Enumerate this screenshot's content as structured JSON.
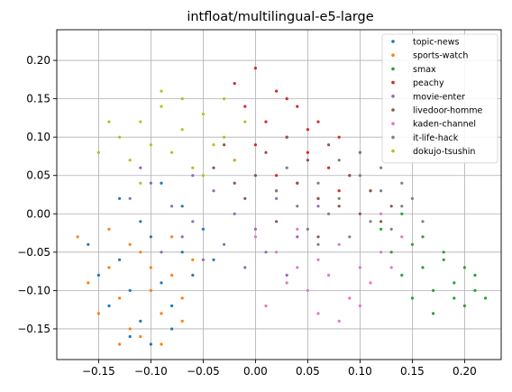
{
  "chart_data": {
    "type": "scatter",
    "title": "intfloat/multilingual-e5-large",
    "xlabel": "",
    "ylabel": "",
    "xlim": [
      -0.19,
      0.235
    ],
    "ylim": [
      -0.19,
      0.24
    ],
    "xticks": [
      -0.15,
      -0.1,
      -0.05,
      0.0,
      0.05,
      0.1,
      0.15,
      0.2
    ],
    "xtick_labels": [
      "−0.15",
      "−0.10",
      "−0.05",
      "0.00",
      "0.05",
      "0.10",
      "0.15",
      "0.20"
    ],
    "yticks": [
      -0.15,
      -0.1,
      -0.05,
      0.0,
      0.05,
      0.1,
      0.15,
      0.2
    ],
    "ytick_labels": [
      "−0.15",
      "−0.10",
      "−0.05",
      "0.00",
      "0.05",
      "0.10",
      "0.15",
      "0.20"
    ],
    "grid": true,
    "legend_position": "top-right",
    "series": [
      {
        "name": "topic-news",
        "color": "#1f77b4",
        "x": [
          -0.16,
          -0.15,
          -0.14,
          -0.13,
          -0.12,
          -0.11,
          -0.1,
          -0.09,
          -0.08,
          -0.07,
          -0.06,
          -0.05,
          -0.04,
          -0.13,
          -0.11,
          -0.09,
          -0.07,
          -0.12,
          -0.1,
          -0.08
        ],
        "y": [
          -0.04,
          -0.08,
          -0.12,
          -0.06,
          -0.1,
          -0.14,
          -0.03,
          -0.09,
          -0.12,
          -0.05,
          -0.08,
          -0.02,
          -0.06,
          0.02,
          -0.01,
          0.04,
          0.01,
          -0.16,
          -0.17,
          -0.15
        ]
      },
      {
        "name": "sports-watch",
        "color": "#ff7f0e",
        "x": [
          -0.17,
          -0.16,
          -0.15,
          -0.14,
          -0.13,
          -0.12,
          -0.11,
          -0.1,
          -0.09,
          -0.08,
          -0.07,
          -0.06,
          -0.14,
          -0.12,
          -0.1,
          -0.08,
          -0.13,
          -0.11,
          -0.09,
          -0.07
        ],
        "y": [
          -0.03,
          -0.09,
          -0.13,
          -0.07,
          -0.11,
          -0.15,
          -0.05,
          -0.1,
          -0.13,
          -0.08,
          -0.11,
          -0.06,
          -0.02,
          -0.04,
          -0.07,
          -0.03,
          -0.17,
          -0.16,
          -0.17,
          -0.14
        ]
      },
      {
        "name": "smax",
        "color": "#2ca02c",
        "x": [
          0.12,
          0.13,
          0.14,
          0.15,
          0.16,
          0.17,
          0.18,
          0.19,
          0.2,
          0.21,
          0.15,
          0.17,
          0.19,
          0.21,
          0.14,
          0.16,
          0.18,
          0.2,
          0.22,
          0.11
        ],
        "y": [
          -0.02,
          -0.05,
          -0.08,
          -0.04,
          -0.07,
          -0.1,
          -0.06,
          -0.09,
          -0.12,
          -0.08,
          -0.11,
          -0.13,
          -0.11,
          -0.1,
          0.0,
          -0.03,
          -0.05,
          -0.07,
          -0.11,
          0.03
        ]
      },
      {
        "name": "peachy",
        "color": "#d62728",
        "x": [
          -0.02,
          0.0,
          0.02,
          0.04,
          0.06,
          0.08,
          0.1,
          0.01,
          0.03,
          0.05,
          0.07,
          -0.01,
          0.02,
          0.04,
          0.06,
          0.08,
          0.0,
          0.03,
          0.05,
          0.09
        ],
        "y": [
          0.17,
          0.19,
          0.16,
          0.14,
          0.12,
          0.1,
          0.08,
          0.12,
          0.1,
          0.08,
          0.06,
          0.14,
          0.05,
          0.04,
          0.02,
          0.03,
          0.09,
          0.15,
          0.11,
          0.05
        ]
      },
      {
        "name": "movie-enter",
        "color": "#9467bd",
        "x": [
          -0.12,
          -0.1,
          -0.08,
          -0.06,
          -0.04,
          -0.02,
          0.0,
          0.02,
          0.04,
          0.06,
          -0.09,
          -0.07,
          -0.05,
          -0.03,
          -0.01,
          0.01,
          0.03,
          -0.11,
          -0.06,
          -0.02
        ],
        "y": [
          0.02,
          0.04,
          0.01,
          -0.01,
          0.03,
          0.0,
          -0.02,
          0.02,
          -0.03,
          0.01,
          -0.05,
          -0.03,
          -0.06,
          -0.04,
          -0.07,
          -0.05,
          -0.08,
          0.06,
          0.05,
          0.07
        ]
      },
      {
        "name": "livedoor-homme",
        "color": "#8c564b",
        "x": [
          -0.04,
          -0.02,
          0.0,
          0.02,
          0.04,
          0.06,
          0.08,
          0.1,
          0.12,
          -0.03,
          0.01,
          0.05,
          0.09,
          0.03,
          0.07,
          0.11,
          -0.01,
          0.13,
          0.06,
          0.02
        ],
        "y": [
          0.06,
          0.04,
          0.05,
          0.03,
          0.04,
          0.02,
          0.01,
          0.0,
          -0.01,
          0.09,
          0.08,
          0.07,
          0.05,
          0.1,
          0.09,
          0.03,
          0.02,
          0.01,
          -0.03,
          -0.01
        ]
      },
      {
        "name": "kaden-channel",
        "color": "#e377c2",
        "x": [
          0.0,
          0.02,
          0.04,
          0.06,
          0.08,
          0.1,
          0.12,
          0.14,
          0.03,
          0.05,
          0.07,
          0.09,
          0.11,
          0.13,
          0.01,
          0.06,
          0.08,
          0.1,
          0.04,
          0.12
        ],
        "y": [
          -0.03,
          -0.05,
          -0.02,
          -0.06,
          -0.04,
          -0.07,
          -0.05,
          -0.03,
          -0.09,
          -0.1,
          -0.08,
          -0.11,
          -0.09,
          -0.07,
          -0.12,
          -0.13,
          -0.14,
          -0.12,
          -0.07,
          0.0
        ]
      },
      {
        "name": "it-life-hack",
        "color": "#7f7f7f",
        "x": [
          0.02,
          0.04,
          0.06,
          0.08,
          0.1,
          0.12,
          0.14,
          0.16,
          0.05,
          0.07,
          0.09,
          0.11,
          0.13,
          0.15,
          0.03,
          0.08,
          0.1,
          0.12,
          0.14,
          0.06
        ],
        "y": [
          0.03,
          0.01,
          0.04,
          0.02,
          0.05,
          0.03,
          0.01,
          -0.01,
          -0.02,
          0.0,
          -0.03,
          -0.01,
          -0.02,
          0.02,
          0.06,
          0.07,
          0.08,
          0.06,
          0.04,
          -0.04
        ]
      },
      {
        "name": "dokujo-tsushin",
        "color": "#bcbd22",
        "x": [
          -0.13,
          -0.11,
          -0.09,
          -0.07,
          -0.05,
          -0.03,
          -0.01,
          -0.12,
          -0.1,
          -0.08,
          -0.06,
          -0.04,
          -0.02,
          -0.09,
          -0.07,
          -0.05,
          -0.15,
          -0.14,
          -0.03,
          -0.11
        ],
        "y": [
          0.1,
          0.12,
          0.14,
          0.11,
          0.13,
          0.1,
          0.12,
          0.07,
          0.09,
          0.08,
          0.06,
          0.09,
          0.07,
          0.16,
          0.15,
          0.05,
          0.08,
          0.12,
          0.15,
          0.04
        ]
      }
    ]
  }
}
